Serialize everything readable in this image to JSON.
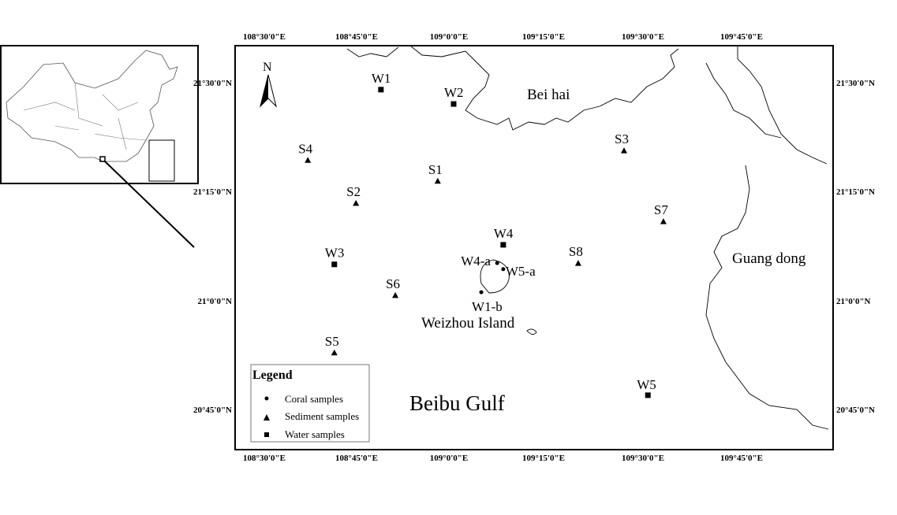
{
  "map": {
    "lon_ticks": [
      "108°30'0\"E",
      "108°45'0\"E",
      "109°0'0\"E",
      "109°15'0\"E",
      "109°30'0\"E",
      "109°45'0\"E"
    ],
    "lat_ticks": [
      "21°30'0\"N",
      "21°15'0\"N",
      "21°0'0\"N",
      "20°45'0\"N"
    ],
    "north_label": "N",
    "places": {
      "beihai": "Bei hai",
      "guangdong": "Guang dong",
      "weizhou": "Weizhou Island",
      "gulf": "Beibu Gulf"
    },
    "stations": [
      {
        "name": "W1",
        "type": "water",
        "lon": 108.808,
        "lat": 21.484
      },
      {
        "name": "W2",
        "type": "water",
        "lon": 109.0,
        "lat": 21.451
      },
      {
        "name": "S4",
        "type": "sediment",
        "lon": 108.615,
        "lat": 21.322
      },
      {
        "name": "S1",
        "type": "sediment",
        "lon": 108.958,
        "lat": 21.274
      },
      {
        "name": "S2",
        "type": "sediment",
        "lon": 108.742,
        "lat": 21.223
      },
      {
        "name": "S3",
        "type": "sediment",
        "lon": 109.45,
        "lat": 21.344
      },
      {
        "name": "S7",
        "type": "sediment",
        "lon": 109.554,
        "lat": 21.181
      },
      {
        "name": "W4",
        "type": "water",
        "lon": 109.131,
        "lat": 21.127
      },
      {
        "name": "W3",
        "type": "water",
        "lon": 108.685,
        "lat": 21.082
      },
      {
        "name": "S8",
        "type": "sediment",
        "lon": 109.329,
        "lat": 21.085
      },
      {
        "name": "W4-a",
        "type": "coral",
        "lon": 109.115,
        "lat": 21.085
      },
      {
        "name": "W5-a",
        "type": "coral",
        "lon": 109.131,
        "lat": 21.071
      },
      {
        "name": "W1-b",
        "type": "coral",
        "lon": 109.073,
        "lat": 21.018
      },
      {
        "name": "S6",
        "type": "sediment",
        "lon": 108.846,
        "lat": 21.011
      },
      {
        "name": "S5",
        "type": "sediment",
        "lon": 108.685,
        "lat": 20.879
      },
      {
        "name": "W5",
        "type": "water",
        "lon": 109.513,
        "lat": 20.781
      }
    ]
  },
  "legend": {
    "title": "Legend",
    "items": [
      {
        "symbol": "circle",
        "label": "Coral samples"
      },
      {
        "symbol": "triangle",
        "label": "Sediment samples"
      },
      {
        "symbol": "square",
        "label": "Water samples"
      }
    ]
  }
}
